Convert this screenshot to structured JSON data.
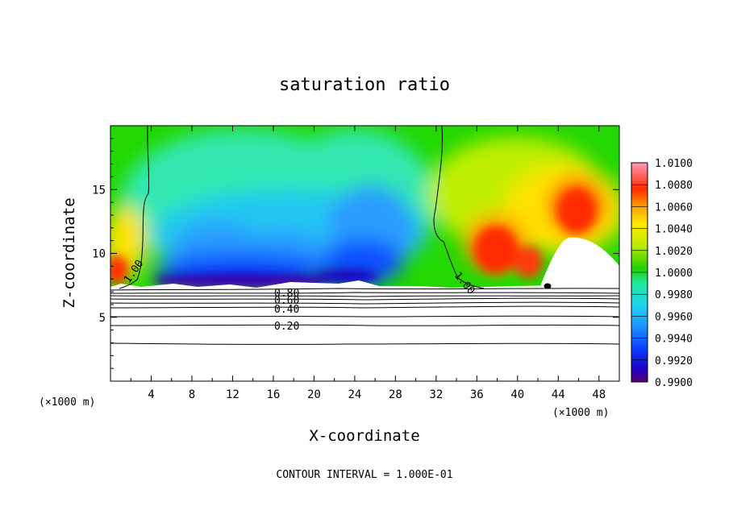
{
  "chart_data": {
    "type": "heatmap",
    "title": "saturation ratio",
    "xlabel": "X-coordinate",
    "ylabel": "Z-coordinate",
    "x_unit": "(×1000 m)",
    "z_unit": "(×1000 m)",
    "xlim": [
      0,
      50
    ],
    "ylim": [
      0,
      20
    ],
    "x_ticks": [
      4,
      8,
      12,
      16,
      20,
      24,
      28,
      32,
      36,
      40,
      44,
      48
    ],
    "y_ticks": [
      5,
      10,
      15
    ],
    "colorbar": {
      "min": 0.99,
      "max": 1.01,
      "labels": [
        "1.0100",
        "1.0080",
        "1.0060",
        "1.0040",
        "1.0020",
        "1.0000",
        "0.9980",
        "0.9960",
        "0.9940",
        "0.9920",
        "0.9900"
      ]
    },
    "contour_labels": [
      "1.00",
      "1.00",
      "0.80",
      "0.60",
      "0.40",
      "0.20"
    ],
    "contour_levels": [
      0.2,
      0.4,
      0.6,
      0.8,
      1.0
    ],
    "footer": "CONTOUR INTERVAL = 1.000E-01"
  }
}
